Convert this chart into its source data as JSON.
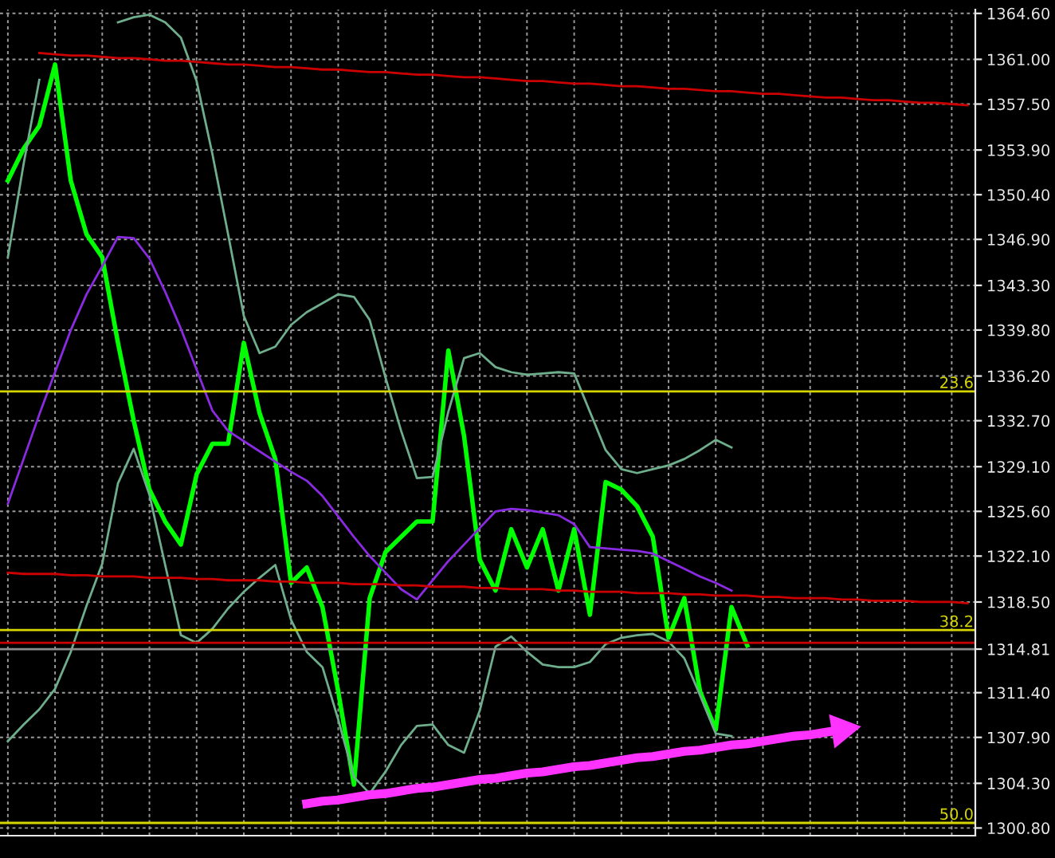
{
  "chart_data": {
    "type": "line",
    "categories": [
      null,
      null,
      null,
      null,
      null,
      null,
      null,
      null,
      null,
      null,
      null,
      null,
      null,
      null,
      null,
      null,
      null,
      null,
      null,
      null,
      null,
      null,
      null,
      null,
      null,
      null,
      null,
      null,
      null,
      null,
      null,
      null,
      null,
      null,
      null,
      null,
      null,
      null,
      null,
      null,
      null,
      null,
      null,
      null,
      null,
      null,
      null,
      null,
      null,
      null,
      null,
      null,
      null,
      null,
      null,
      null,
      null,
      null,
      null,
      null,
      null,
      null
    ],
    "series": [
      {
        "color": "#00ff00",
        "values": [
          1351.5,
          1354.0,
          1355.8,
          1360.6,
          1351.5,
          1347.3,
          1345.5,
          1338.8,
          1332.7,
          1327.3,
          1324.8,
          1323.0,
          1328.5,
          1330.9,
          1330.9,
          1338.8,
          1333.3,
          1329.7,
          1320.0,
          1321.2,
          1318.1,
          1311.5,
          1304.2,
          1318.8,
          1322.4,
          1323.6,
          1324.8,
          1324.8,
          1338.2,
          1331.5,
          1321.8,
          1319.4,
          1324.2,
          1321.2,
          1324.2,
          1319.4,
          1324.2,
          1317.5,
          1327.9,
          1327.3,
          1326.0,
          1323.6,
          1315.7,
          1318.8,
          1311.5,
          1308.5,
          1318.1,
          1315.1,
          null,
          null,
          null,
          null,
          null,
          null,
          null,
          null,
          null,
          null,
          null,
          null,
          null,
          null
        ]
      },
      {
        "color": "#8a2be2",
        "values": [
          1326.2,
          1329.7,
          1333.2,
          1336.5,
          1339.8,
          1342.6,
          1344.8,
          1347.1,
          1347.0,
          1345.4,
          1342.8,
          1339.9,
          1336.7,
          1333.5,
          1331.9,
          1331.1,
          1330.3,
          1329.5,
          1328.7,
          1328.0,
          1326.8,
          1325.2,
          1323.6,
          1322.1,
          1320.8,
          1319.5,
          1318.7,
          1320.2,
          1321.7,
          1323.0,
          1324.3,
          1325.6,
          1325.8,
          1325.7,
          1325.5,
          1325.3,
          1324.6,
          1322.8,
          1322.7,
          1322.6,
          1322.5,
          1322.3,
          1321.7,
          1321.1,
          1320.5,
          1320.0,
          1319.4,
          null,
          null,
          null,
          null,
          null,
          null,
          null,
          null,
          null,
          null,
          null,
          null,
          null,
          null,
          null
        ]
      },
      {
        "color": "#6fae8c",
        "values": [
          1345.5,
          1352.8,
          1359.4,
          null,
          null,
          null,
          null,
          1363.9,
          1364.3,
          1364.5,
          1363.9,
          1362.7,
          1359.3,
          1353.6,
          1347.3,
          1340.9,
          1338.0,
          1338.5,
          1340.2,
          1341.2,
          1341.9,
          1342.6,
          1342.4,
          1340.6,
          1336.1,
          1331.9,
          1328.2,
          1328.3,
          1333.4,
          1337.6,
          1338.0,
          1336.9,
          1336.5,
          1336.3,
          1336.4,
          1336.5,
          1336.4,
          1333.4,
          1330.4,
          1328.9,
          1328.6,
          1328.9,
          1329.2,
          1329.7,
          1330.4,
          1331.2,
          1330.6,
          null,
          null,
          null,
          null,
          null,
          null,
          null,
          null,
          null,
          null,
          null,
          null,
          null,
          null,
          null
        ]
      },
      {
        "color": "#6fae8c",
        "values": [
          1307.6,
          1308.9,
          1310.1,
          1311.7,
          1314.6,
          1318.2,
          1321.5,
          1327.8,
          1330.5,
          1326.9,
          1321.4,
          1315.9,
          1315.3,
          1316.4,
          1318.0,
          1319.3,
          1320.4,
          1321.4,
          1317.1,
          1314.6,
          1313.4,
          1309.3,
          1304.8,
          1303.5,
          1305.2,
          1307.3,
          1308.8,
          1308.9,
          1307.3,
          1306.7,
          1310.0,
          1315.0,
          1315.8,
          1314.6,
          1313.6,
          1313.4,
          1313.4,
          1313.8,
          1315.2,
          1315.7,
          1315.9,
          1316.0,
          1315.4,
          1314.1,
          1311.2,
          1308.2,
          1308.0,
          null,
          null,
          null,
          null,
          null,
          null,
          null,
          null,
          null,
          null,
          null,
          null,
          null,
          null,
          null
        ]
      },
      {
        "color": "#cc0000",
        "values": [
          null,
          null,
          1361.5,
          1361.4,
          1361.3,
          1361.3,
          1361.2,
          1361.1,
          1361.1,
          1361.0,
          1360.9,
          1360.9,
          1360.8,
          1360.7,
          1360.6,
          1360.6,
          1360.5,
          1360.4,
          1360.4,
          1360.3,
          1360.2,
          1360.2,
          1360.1,
          1360.0,
          1360.0,
          1359.9,
          1359.8,
          1359.8,
          1359.7,
          1359.6,
          1359.6,
          1359.5,
          1359.4,
          1359.3,
          1359.3,
          1359.2,
          1359.1,
          1359.1,
          1359.0,
          1358.9,
          1358.9,
          1358.8,
          1358.7,
          1358.7,
          1358.6,
          1358.5,
          1358.5,
          1358.4,
          1358.3,
          1358.3,
          1358.2,
          1358.1,
          1358.0,
          1358.0,
          1357.9,
          1357.8,
          1357.8,
          1357.7,
          1357.6,
          1357.6,
          1357.5,
          1357.4
        ]
      },
      {
        "color": "#cc0000",
        "values": [
          1320.8,
          1320.7,
          1320.7,
          1320.7,
          1320.6,
          1320.6,
          1320.5,
          1320.5,
          1320.5,
          1320.4,
          1320.4,
          1320.4,
          1320.3,
          1320.3,
          1320.2,
          1320.2,
          1320.2,
          1320.1,
          1320.1,
          1320.0,
          1320.0,
          1320.0,
          1319.9,
          1319.9,
          1319.9,
          1319.8,
          1319.8,
          1319.7,
          1319.7,
          1319.7,
          1319.6,
          1319.6,
          1319.5,
          1319.5,
          1319.5,
          1319.4,
          1319.4,
          1319.3,
          1319.3,
          1319.3,
          1319.2,
          1319.2,
          1319.2,
          1319.1,
          1319.1,
          1319.0,
          1319.0,
          1319.0,
          1318.9,
          1318.9,
          1318.8,
          1318.8,
          1318.8,
          1318.7,
          1318.7,
          1318.6,
          1318.6,
          1318.6,
          1318.5,
          1318.5,
          1318.5,
          1318.4
        ]
      },
      {
        "color": "#ff33ff",
        "values": [
          null,
          null,
          null,
          null,
          null,
          null,
          null,
          null,
          null,
          null,
          null,
          null,
          null,
          null,
          null,
          null,
          null,
          null,
          null,
          1302.7,
          1302.9,
          1303.0,
          1303.2,
          1303.4,
          1303.5,
          1303.7,
          1303.9,
          1304.0,
          1304.2,
          1304.4,
          1304.6,
          1304.7,
          1304.9,
          1305.1,
          1305.2,
          1305.4,
          1305.6,
          1305.7,
          1305.9,
          1306.1,
          1306.3,
          1306.4,
          1306.6,
          1306.8,
          1306.9,
          1307.1,
          1307.3,
          1307.4,
          1307.6,
          1307.8,
          1308.0,
          1308.1,
          1308.3,
          1308.5,
          null,
          null,
          null,
          null,
          null,
          null,
          null,
          null
        ]
      }
    ],
    "ref_lines": [
      {
        "axis": "y",
        "value": 1335.0,
        "color": "#d6d600"
      },
      {
        "axis": "y",
        "value": 1316.3,
        "color": "#d6d600"
      },
      {
        "axis": "y",
        "value": 1301.2,
        "color": "#d6d600"
      },
      {
        "axis": "y",
        "value": 1315.3,
        "color": "#cc0000"
      },
      {
        "axis": "y",
        "value": 1314.81,
        "color": "#8c8c8c"
      }
    ],
    "annotations": [
      {
        "text": "23.6",
        "y": 1335.0
      },
      {
        "text": "38.2",
        "y": 1316.3
      },
      {
        "text": "50.0",
        "y": 1301.2
      }
    ],
    "ylim": [
      1300.2,
      1364.9
    ],
    "yticks": [
      {
        "value": 1364.6,
        "label": "1364.60"
      },
      {
        "value": 1361.0,
        "label": "1361.00"
      },
      {
        "value": 1357.5,
        "label": "1357.50"
      },
      {
        "value": 1353.9,
        "label": "1353.90"
      },
      {
        "value": 1350.4,
        "label": "1350.40"
      },
      {
        "value": 1346.9,
        "label": "1346.90"
      },
      {
        "value": 1343.3,
        "label": "1343.30"
      },
      {
        "value": 1339.8,
        "label": "1339.80"
      },
      {
        "value": 1336.2,
        "label": "1336.20"
      },
      {
        "value": 1332.7,
        "label": "1332.70"
      },
      {
        "value": 1329.1,
        "label": "1329.10"
      },
      {
        "value": 1325.6,
        "label": "1325.60"
      },
      {
        "value": 1322.1,
        "label": "1322.10"
      },
      {
        "value": 1318.5,
        "label": "1318.50"
      },
      {
        "value": 1314.81,
        "label": "1314.81"
      },
      {
        "value": 1311.4,
        "label": "1311.40"
      },
      {
        "value": 1307.9,
        "label": "1307.90"
      },
      {
        "value": 1304.3,
        "label": "1304.30"
      },
      {
        "value": 1300.8,
        "label": "1300.80"
      }
    ],
    "grid": true,
    "legend": false,
    "tick_labels": "y"
  }
}
